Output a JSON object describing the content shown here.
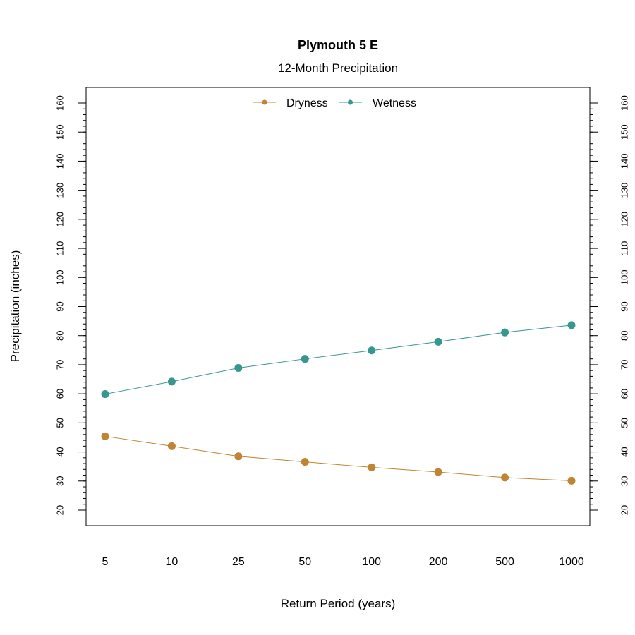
{
  "chart_data": {
    "type": "line",
    "title": "Plymouth 5 E",
    "subtitle": "12-Month Precipitation",
    "xlabel": "Return Period (years)",
    "ylabel": "Precipitation (inches)",
    "categories": [
      "5",
      "10",
      "25",
      "50",
      "100",
      "200",
      "500",
      "1000"
    ],
    "ylim": [
      15,
      165
    ],
    "yticks": [
      20,
      30,
      40,
      50,
      60,
      70,
      80,
      90,
      100,
      110,
      120,
      130,
      140,
      150,
      160
    ],
    "minor_tick_step": 2,
    "grid": false,
    "legend_position": "top-center",
    "series": [
      {
        "name": "Dryness",
        "color": "#C08432",
        "values": [
          45.4,
          42.0,
          38.5,
          36.6,
          34.7,
          33.1,
          31.2,
          30.1
        ]
      },
      {
        "name": "Wetness",
        "color": "#36978F",
        "values": [
          59.9,
          64.2,
          68.9,
          72.0,
          74.9,
          77.9,
          81.1,
          83.6
        ]
      }
    ]
  }
}
